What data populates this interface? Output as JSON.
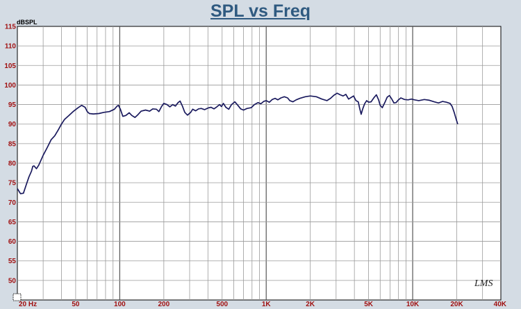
{
  "chart_data": {
    "type": "line",
    "title": "SPL vs Freq",
    "ylabel": "dBSPL",
    "xlabel": "",
    "x_scale": "log",
    "xlim": [
      20,
      40000
    ],
    "ylim": [
      45,
      115
    ],
    "grid": true,
    "y_ticks": [
      115,
      110,
      105,
      100,
      95,
      90,
      85,
      80,
      75,
      70,
      65,
      60,
      55,
      50
    ],
    "x_tick_labels": [
      {
        "f": 20,
        "label": "20 Hz"
      },
      {
        "f": 50,
        "label": "50"
      },
      {
        "f": 100,
        "label": "100"
      },
      {
        "f": 200,
        "label": "200"
      },
      {
        "f": 500,
        "label": "500"
      },
      {
        "f": 1000,
        "label": "1K"
      },
      {
        "f": 2000,
        "label": "2K"
      },
      {
        "f": 5000,
        "label": "5K"
      },
      {
        "f": 10000,
        "label": "10K"
      },
      {
        "f": 20000,
        "label": "20K"
      },
      {
        "f": 40000,
        "label": "40K"
      }
    ],
    "line_color": "#1a1a5e",
    "series": [
      {
        "points": [
          [
            20,
            73.5
          ],
          [
            21,
            72.2
          ],
          [
            22,
            72.3
          ],
          [
            23,
            74.5
          ],
          [
            24,
            76.5
          ],
          [
            25,
            78.0
          ],
          [
            25.5,
            79.2
          ],
          [
            26,
            79.3
          ],
          [
            27,
            78.6
          ],
          [
            28,
            79.5
          ],
          [
            30,
            82.0
          ],
          [
            32,
            84.0
          ],
          [
            34,
            86.0
          ],
          [
            36,
            87.0
          ],
          [
            38,
            88.5
          ],
          [
            40,
            90.0
          ],
          [
            42,
            91.2
          ],
          [
            45,
            92.2
          ],
          [
            48,
            93.2
          ],
          [
            52,
            94.2
          ],
          [
            55,
            94.8
          ],
          [
            58,
            94.3
          ],
          [
            60,
            93.2
          ],
          [
            62,
            92.7
          ],
          [
            66,
            92.6
          ],
          [
            72,
            92.7
          ],
          [
            78,
            93.0
          ],
          [
            85,
            93.2
          ],
          [
            92,
            93.8
          ],
          [
            96,
            94.6
          ],
          [
            98,
            94.8
          ],
          [
            101,
            93.8
          ],
          [
            105,
            92.0
          ],
          [
            110,
            92.2
          ],
          [
            116,
            92.9
          ],
          [
            121,
            92.2
          ],
          [
            127,
            91.7
          ],
          [
            133,
            92.4
          ],
          [
            140,
            93.3
          ],
          [
            150,
            93.6
          ],
          [
            160,
            93.3
          ],
          [
            168,
            93.9
          ],
          [
            178,
            93.8
          ],
          [
            185,
            93.2
          ],
          [
            193,
            94.5
          ],
          [
            200,
            95.3
          ],
          [
            210,
            95.0
          ],
          [
            220,
            94.4
          ],
          [
            230,
            95.0
          ],
          [
            240,
            94.6
          ],
          [
            250,
            95.5
          ],
          [
            258,
            95.9
          ],
          [
            268,
            94.6
          ],
          [
            278,
            93.0
          ],
          [
            290,
            92.3
          ],
          [
            305,
            93.0
          ],
          [
            315,
            93.8
          ],
          [
            330,
            93.4
          ],
          [
            345,
            93.9
          ],
          [
            360,
            94.0
          ],
          [
            380,
            93.7
          ],
          [
            400,
            94.1
          ],
          [
            420,
            94.3
          ],
          [
            440,
            93.9
          ],
          [
            460,
            94.4
          ],
          [
            480,
            95.0
          ],
          [
            495,
            94.5
          ],
          [
            510,
            95.3
          ],
          [
            530,
            94.3
          ],
          [
            555,
            93.8
          ],
          [
            580,
            95.0
          ],
          [
            610,
            95.7
          ],
          [
            640,
            94.8
          ],
          [
            670,
            93.9
          ],
          [
            700,
            93.6
          ],
          [
            740,
            94.0
          ],
          [
            790,
            94.2
          ],
          [
            830,
            95.0
          ],
          [
            880,
            95.5
          ],
          [
            920,
            95.2
          ],
          [
            960,
            95.8
          ],
          [
            1000,
            96.0
          ],
          [
            1050,
            95.6
          ],
          [
            1100,
            96.3
          ],
          [
            1150,
            96.6
          ],
          [
            1200,
            96.2
          ],
          [
            1260,
            96.7
          ],
          [
            1330,
            97.0
          ],
          [
            1400,
            96.7
          ],
          [
            1450,
            96.0
          ],
          [
            1520,
            95.7
          ],
          [
            1600,
            96.2
          ],
          [
            1700,
            96.6
          ],
          [
            1850,
            97.0
          ],
          [
            2000,
            97.2
          ],
          [
            2200,
            97.0
          ],
          [
            2400,
            96.4
          ],
          [
            2600,
            96.0
          ],
          [
            2750,
            96.6
          ],
          [
            2900,
            97.4
          ],
          [
            3050,
            97.9
          ],
          [
            3200,
            97.5
          ],
          [
            3350,
            97.2
          ],
          [
            3500,
            97.6
          ],
          [
            3650,
            96.4
          ],
          [
            3800,
            96.8
          ],
          [
            3950,
            97.2
          ],
          [
            4100,
            96.0
          ],
          [
            4250,
            95.7
          ],
          [
            4350,
            94.0
          ],
          [
            4450,
            92.5
          ],
          [
            4550,
            93.8
          ],
          [
            4700,
            95.2
          ],
          [
            4850,
            96.0
          ],
          [
            5000,
            95.6
          ],
          [
            5200,
            95.7
          ],
          [
            5450,
            96.8
          ],
          [
            5650,
            97.5
          ],
          [
            5850,
            96.2
          ],
          [
            6000,
            94.8
          ],
          [
            6200,
            94.2
          ],
          [
            6450,
            95.5
          ],
          [
            6700,
            96.9
          ],
          [
            6950,
            97.3
          ],
          [
            7200,
            96.4
          ],
          [
            7450,
            95.4
          ],
          [
            7700,
            95.5
          ],
          [
            8000,
            96.2
          ],
          [
            8300,
            96.7
          ],
          [
            8800,
            96.3
          ],
          [
            9300,
            96.2
          ],
          [
            9800,
            96.4
          ],
          [
            10300,
            96.2
          ],
          [
            11000,
            96.0
          ],
          [
            12000,
            96.3
          ],
          [
            13000,
            96.1
          ],
          [
            14000,
            95.7
          ],
          [
            15000,
            95.4
          ],
          [
            16000,
            95.8
          ],
          [
            17000,
            95.6
          ],
          [
            18000,
            95.3
          ],
          [
            18600,
            94.5
          ],
          [
            19200,
            93.0
          ],
          [
            19800,
            91.3
          ],
          [
            20300,
            90.0
          ]
        ]
      }
    ]
  },
  "watermark": "LMS"
}
